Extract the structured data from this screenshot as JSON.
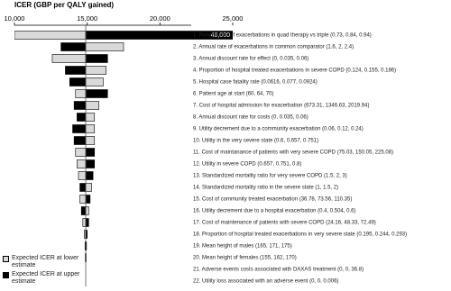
{
  "chart_data": {
    "type": "tornado",
    "title": "ICER (GBP per QALY gained)",
    "base": 14900,
    "xlim": [
      10000,
      25000
    ],
    "xticks": [
      {
        "value": 10000,
        "label": "10,000"
      },
      {
        "value": 15000,
        "label": "15,000"
      },
      {
        "value": 20000,
        "label": "20,000"
      },
      {
        "value": 25000,
        "label": "25,000"
      }
    ],
    "categories": [
      "1. Relative risk of exacerbations in quad therapy vs triple (0.73, 0.84, 0.94)",
      "2. Annual rate of exacerbations in common comparator (1.6, 2, 2.4)",
      "3. Annual  discount rate for effect (0, 0.035, 0.06)",
      "4. Proportion of hospital treated exacerbations in severe COPD (0.124, 0.155, 0.186)",
      "5. Hospital case fatality rate (0.0616, 0.077, 0.0924)",
      "6. Patient age at start (60, 64, 70)",
      "7. Cost of hospital admission for exacerbation (673.31, 1346.63, 2019.94)",
      "8. Annual discount rate for costs (0, 0.035, 0.06)",
      "9. Utility decrement due to a community exacerbation (0.06, 0.12, 0.24)",
      "10. Utility in the very severe state (0.6, 0.657, 0.751)",
      "11.  Cost of maintanance of patients with very severe COPD (75.03, 150.05, 225.08)",
      "12. Utility in severe COPD (0.657, 0.751, 0.8)",
      "13. Standardized mortality ratio for very severe COPD (1.5, 2, 3)",
      "14. Standardized mortality ratio in the severe state (1, 1.5, 2)",
      "15. Cost of community treated exacerbation (36.78, 73.56, 110.35)",
      "16. Utility decrement due to a hospital exacerbation (0.4, 0.504, 0.6)",
      "17. Cost of maintenance of patients with severe COPD (24.16, 48.33, 72.49)",
      "18. Proportion of hospital treated exacerbations in very severe state (0.195, 0.244, 0.293)",
      "19. Mean height of males (165, 171, 175)",
      "20. Mean height of females (155, 162, 170)",
      "21. Adverse events costs associated with DAXAS treatment (0, 0, 36.8)",
      "22. Utility loss associated with an adverse event (0, 0, 0.006)"
    ],
    "series": [
      {
        "name": "Expected ICER at lower estimate",
        "color": "#d9d9d9",
        "values": [
          10000,
          17500,
          12600,
          16300,
          16100,
          14200,
          15800,
          15500,
          15500,
          15500,
          14200,
          14300,
          14400,
          15300,
          14500,
          15100,
          14700,
          14800,
          14850,
          14870,
          14900,
          14900
        ]
      },
      {
        "name": "Expected ICER at upper estimate",
        "color": "#000000",
        "values": [
          48000,
          13200,
          16400,
          13500,
          13800,
          16400,
          14100,
          14300,
          14000,
          14100,
          15500,
          15500,
          15400,
          14500,
          15200,
          14600,
          15100,
          15000,
          14950,
          14930,
          14900,
          14900
        ],
        "value_labels": [
          "48,000",
          null,
          null,
          null,
          null,
          null,
          null,
          null,
          null,
          null,
          null,
          null,
          null,
          null,
          null,
          null,
          null,
          null,
          null,
          null,
          null,
          null
        ]
      }
    ]
  }
}
